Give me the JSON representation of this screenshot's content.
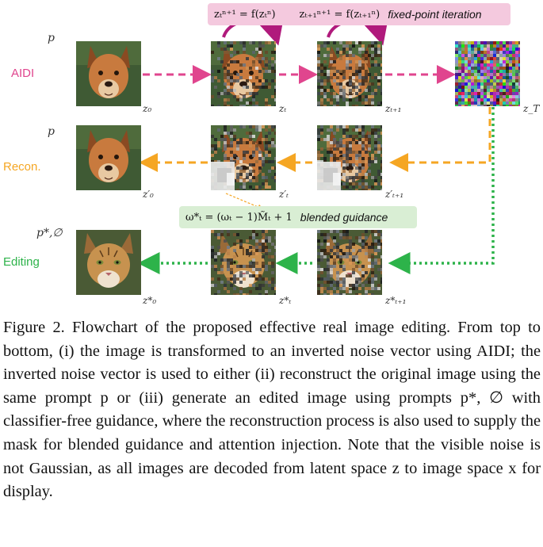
{
  "rows": {
    "aidi": {
      "label": "AIDI",
      "prompt": "p",
      "color": "#e0458e"
    },
    "recon": {
      "label": "Recon.",
      "prompt": "p",
      "color": "#f5a623"
    },
    "editing": {
      "label": "Editing",
      "prompt": "p*,∅",
      "color": "#2db34a"
    }
  },
  "images": {
    "aidi_z0": "z₀",
    "aidi_zt": "zₜ",
    "aidi_zt1": "zₜ₊₁",
    "aidi_zT": "z_T",
    "recon_z0": "z′₀",
    "recon_zt": "z′ₜ",
    "recon_zt1": "z′ₜ₊₁",
    "edit_z0": "z*₀",
    "edit_zt": "z*ₜ",
    "edit_zt1": "z*ₜ₊₁"
  },
  "fixed_point": {
    "eq1": "zₜⁿ⁺¹ = f(zₜⁿ)",
    "eq2": "zₜ₊₁ⁿ⁺¹ = f(zₜ₊₁ⁿ)",
    "text": "fixed-point iteration",
    "color": "#f4c9de"
  },
  "blended": {
    "eq": "ω*ₜ = (ωₜ − 1)M̃ₜ + 1",
    "text": "blended guidance",
    "color": "#d9eed4"
  },
  "caption": "Figure 2. Flowchart of the proposed effective real image editing. From top to bottom, (i) the image is transformed to an inverted noise vector using AIDI; the inverted noise vector is used to either (ii) reconstruct the original image using the same prompt p or (iii) generate an edited image using prompts p*, ∅ with classifier-free guidance, where the reconstruction process is also used to supply the mask for blended guidance and attention injection. Note that the visible noise is not Gaussian, as all images are decoded from latent space z to image space x for display."
}
